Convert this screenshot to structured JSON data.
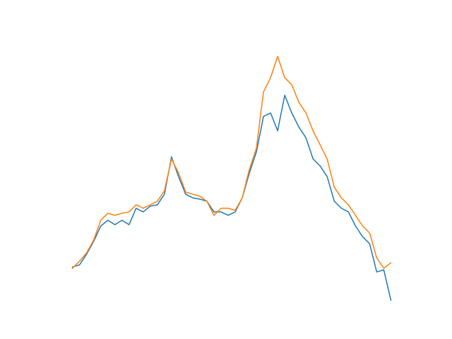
{
  "chart_data": {
    "type": "line",
    "x": [
      0,
      1,
      2,
      3,
      4,
      5,
      6,
      7,
      8,
      9,
      10,
      11,
      12,
      13,
      14,
      15,
      16,
      17,
      18,
      19,
      20,
      21,
      22,
      23,
      24,
      25,
      26,
      27,
      28,
      29,
      30,
      31,
      32,
      33,
      34,
      35,
      36,
      37,
      38,
      39,
      40,
      41,
      42,
      43,
      44,
      45
    ],
    "series": [
      {
        "color": "#1f77b4",
        "values": [
          13.3,
          14.1,
          18.2,
          23.1,
          29.0,
          31.2,
          29.5,
          31.2,
          29.5,
          35.8,
          34.4,
          36.6,
          37.1,
          41.2,
          55.5,
          47.9,
          41.2,
          39.8,
          39.3,
          38.5,
          34.4,
          34.4,
          33.1,
          34.4,
          39.8,
          49.3,
          57.4,
          71.0,
          72.3,
          65.5,
          79.1,
          72.3,
          66.9,
          62.8,
          54.7,
          52.0,
          47.9,
          38.5,
          35.8,
          34.4,
          29.0,
          24.9,
          22.2,
          11.4,
          12.2,
          0.6
        ]
      },
      {
        "color": "#ff7f0e",
        "values": [
          12.8,
          15.5,
          18.7,
          23.6,
          31.2,
          33.9,
          33.1,
          33.9,
          34.4,
          37.1,
          35.8,
          37.1,
          38.5,
          42.5,
          54.7,
          49.3,
          42.0,
          41.2,
          40.4,
          38.5,
          33.1,
          35.8,
          35.8,
          35.0,
          39.8,
          50.7,
          58.8,
          80.4,
          85.8,
          94.0,
          85.8,
          83.1,
          76.4,
          72.3,
          65.5,
          60.1,
          54.7,
          43.9,
          39.8,
          37.1,
          33.1,
          29.0,
          26.3,
          16.8,
          12.8,
          14.9
        ]
      }
    ],
    "xlim": [
      -2.25,
      47.25
    ],
    "ylim": [
      0,
      100
    ]
  }
}
